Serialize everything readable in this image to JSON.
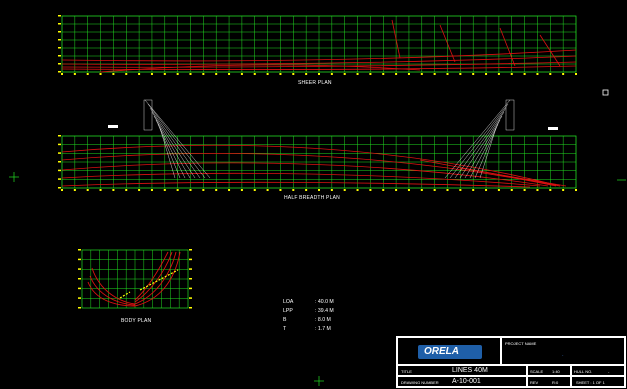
{
  "views": {
    "sheer_plan": "SHEER PLAN",
    "half_breadth_plan": "HALF BREADTH PLAN",
    "body_plan": "BODY PLAN"
  },
  "particulars": [
    {
      "key": "LOA",
      "value": ": 40.0 M"
    },
    {
      "key": "LPP",
      "value": ": 39.4 M"
    },
    {
      "key": "B",
      "value": ": 8.0 M"
    },
    {
      "key": "T",
      "value": ": 1.7 M"
    }
  ],
  "title_block": {
    "logo_text": "ORELA",
    "project_label": "PROJECT NAME",
    "title_label": "TITLE",
    "title_value": "LINES 40M",
    "scale_label": "SCALE",
    "scale_value": "1:40",
    "hull_label": "HULL NO.",
    "hull_value": "-",
    "drawing_label": "DRAWING NUMBER",
    "drawing_value": "A-10-001",
    "rev_label": "REV",
    "rev_value": "R:0",
    "sheet_value": "SHEET : 1 OF 1"
  },
  "colors": {
    "grid": "#22dd22",
    "lines": "#dd1111",
    "ticks": "#ffff00",
    "text": "#ffffff"
  }
}
